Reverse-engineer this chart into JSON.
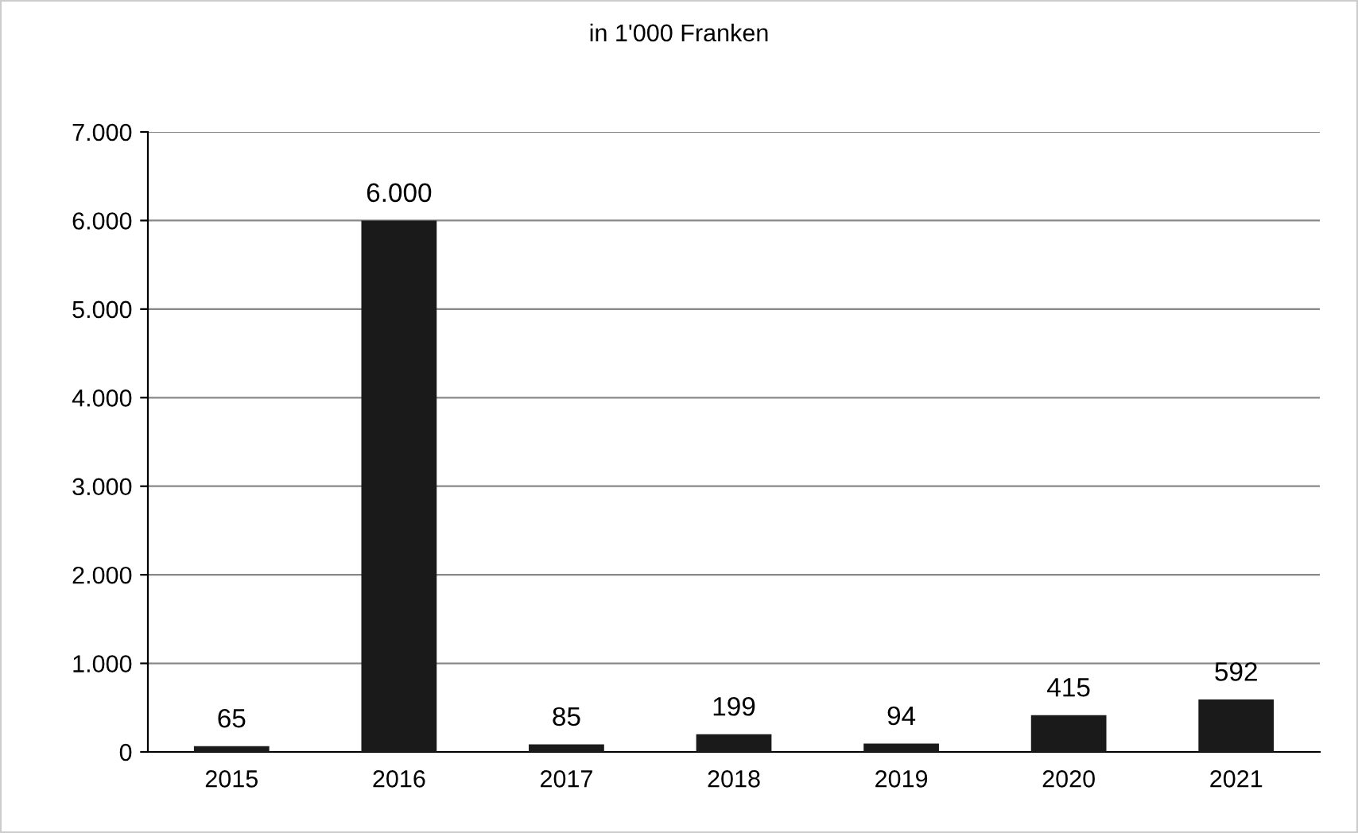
{
  "chart_data": {
    "type": "bar",
    "title": "in 1'000 Franken",
    "categories": [
      "2015",
      "2016",
      "2017",
      "2018",
      "2019",
      "2020",
      "2021"
    ],
    "values": [
      65,
      6000,
      85,
      199,
      94,
      415,
      592
    ],
    "value_labels": [
      "65",
      "6.000",
      "85",
      "199",
      "94",
      "415",
      "592"
    ],
    "color": "#1a1a1a",
    "ylim": [
      0,
      7000
    ],
    "yticks": [
      0,
      {
        "value": 1000,
        "label": "1.000"
      },
      {
        "value": 2000,
        "label": "2.000"
      },
      {
        "value": 3000,
        "label": "3.000"
      },
      {
        "value": 4000,
        "label": "4.000"
      },
      {
        "value": 5000,
        "label": "5.000"
      },
      {
        "value": 6000,
        "label": "6.000"
      },
      {
        "value": 7000,
        "label": "7.000"
      }
    ],
    "grid": "y",
    "legend": false
  }
}
